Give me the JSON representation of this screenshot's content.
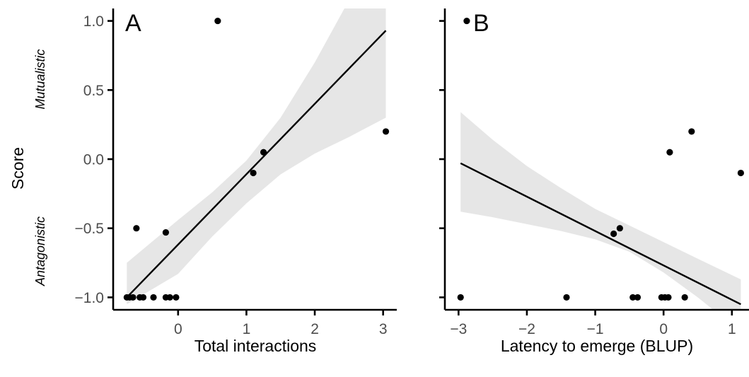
{
  "chart_data": [
    {
      "type": "scatter",
      "panel_label": "A",
      "xlabel": "Total interactions",
      "ylabel": "Score",
      "y_annotations": [
        "Mutualistic",
        "Antagonistic"
      ],
      "xlim": [
        -0.95,
        3.2
      ],
      "ylim": [
        -1.09,
        1.09
      ],
      "x_ticks": [
        0,
        1,
        2,
        3
      ],
      "y_ticks": [
        -1.0,
        -0.5,
        0.0,
        0.5,
        1.0
      ],
      "y_tick_labels": [
        "−1.0",
        "−0.5",
        "0.0",
        "0.5",
        "1.0"
      ],
      "points": [
        {
          "x": -0.75,
          "y": -1.0
        },
        {
          "x": -0.71,
          "y": -1.0
        },
        {
          "x": -0.66,
          "y": -1.0
        },
        {
          "x": -0.56,
          "y": -1.0
        },
        {
          "x": -0.51,
          "y": -1.0
        },
        {
          "x": -0.36,
          "y": -1.0
        },
        {
          "x": -0.18,
          "y": -1.0
        },
        {
          "x": -0.12,
          "y": -1.0
        },
        {
          "x": -0.03,
          "y": -1.0
        },
        {
          "x": -0.61,
          "y": -0.5
        },
        {
          "x": -0.18,
          "y": -0.53
        },
        {
          "x": 0.58,
          "y": 1.0
        },
        {
          "x": 1.1,
          "y": -0.1
        },
        {
          "x": 1.25,
          "y": 0.05
        },
        {
          "x": 3.04,
          "y": 0.2
        }
      ],
      "fit_line": {
        "x": [
          -0.75,
          3.04
        ],
        "y": [
          -1.0,
          0.93
        ]
      },
      "confidence_band": {
        "x": [
          -0.75,
          0.0,
          0.5,
          1.0,
          1.5,
          2.0,
          2.5,
          3.04
        ],
        "lower": [
          -1.05,
          -0.83,
          -0.56,
          -0.32,
          -0.11,
          0.04,
          0.16,
          0.3
        ],
        "upper": [
          -0.75,
          -0.44,
          -0.24,
          -0.01,
          0.3,
          0.7,
          1.15,
          1.65
        ]
      },
      "colors": {
        "points": "#000000",
        "line": "#000000",
        "band": "#e6e6e6",
        "axis": "#000000"
      }
    },
    {
      "type": "scatter",
      "panel_label": "B",
      "xlabel": "Latency to emerge (BLUP)",
      "xlim": [
        -3.2,
        1.25
      ],
      "ylim": [
        -1.09,
        1.09
      ],
      "x_ticks": [
        -3,
        -2,
        -1,
        0,
        1
      ],
      "x_tick_labels": [
        "−3",
        "−2",
        "−1",
        "0",
        "1"
      ],
      "y_ticks": [
        -1.0,
        -0.5,
        0.0,
        0.5,
        1.0
      ],
      "points": [
        {
          "x": -2.88,
          "y": 1.0
        },
        {
          "x": -2.97,
          "y": -1.0
        },
        {
          "x": -1.42,
          "y": -1.0
        },
        {
          "x": -0.45,
          "y": -1.0
        },
        {
          "x": -0.38,
          "y": -1.0
        },
        {
          "x": -0.03,
          "y": -1.0
        },
        {
          "x": 0.02,
          "y": -1.0
        },
        {
          "x": 0.07,
          "y": -1.0
        },
        {
          "x": 0.31,
          "y": -1.0
        },
        {
          "x": -0.73,
          "y": -0.54
        },
        {
          "x": -0.64,
          "y": -0.5
        },
        {
          "x": 0.09,
          "y": 0.05
        },
        {
          "x": 0.41,
          "y": 0.2
        },
        {
          "x": 1.13,
          "y": -0.1
        }
      ],
      "fit_line": {
        "x": [
          -2.97,
          1.13
        ],
        "y": [
          -0.03,
          -1.05
        ]
      },
      "confidence_band": {
        "x": [
          -2.97,
          -2.5,
          -2.0,
          -1.5,
          -1.0,
          -0.5,
          0.0,
          0.5,
          1.13
        ],
        "lower": [
          -0.38,
          -0.42,
          -0.47,
          -0.52,
          -0.58,
          -0.67,
          -0.82,
          -1.0,
          -1.25
        ],
        "upper": [
          0.34,
          0.14,
          -0.05,
          -0.21,
          -0.36,
          -0.48,
          -0.6,
          -0.72,
          -0.87
        ]
      },
      "colors": {
        "points": "#000000",
        "line": "#000000",
        "band": "#e6e6e6",
        "axis": "#000000"
      }
    }
  ]
}
